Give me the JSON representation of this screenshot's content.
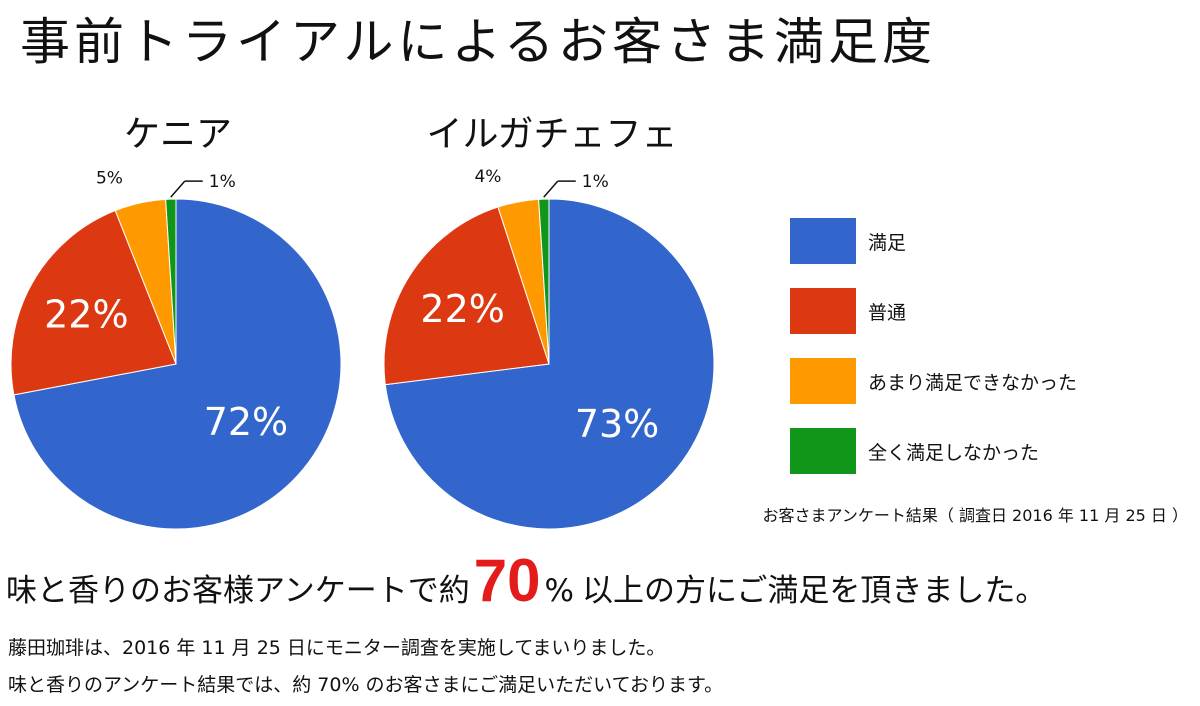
{
  "page": {
    "title": "事前トライアルによるお客さま満足度",
    "source_note": "お客さまアンケート結果（ 調査日 2016 年 11 月 25 日 ）",
    "headline": {
      "prefix": "味と香りのお客様アンケートで約",
      "highlight": "70",
      "percent_sign": "%",
      "suffix": "以上の方にご満足を頂きました。"
    },
    "body": [
      "藤田珈琲は、2016 年 11 月 25 日にモニター調査を実施してまいりました。",
      "味と香りのアンケート結果では、約 70% のお客さまにご満足いただいております。"
    ]
  },
  "legend": [
    {
      "label": "満足",
      "color": "#3366cc"
    },
    {
      "label": "普通",
      "color": "#dc3912"
    },
    {
      "label": "あまり満足できなかった",
      "color": "#ff9900"
    },
    {
      "label": "全く満足しなかった",
      "color": "#109618"
    }
  ],
  "chart_data": [
    {
      "type": "pie",
      "title": "ケニア",
      "categories": [
        "満足",
        "普通",
        "あまり満足できなかった",
        "全く満足しなかった"
      ],
      "values": [
        72,
        22,
        5,
        1
      ],
      "labels": [
        "72%",
        "22%",
        "5%",
        "1%"
      ],
      "colors": [
        "#3366cc",
        "#dc3912",
        "#ff9900",
        "#109618"
      ]
    },
    {
      "type": "pie",
      "title": "イルガチェフェ",
      "categories": [
        "満足",
        "普通",
        "あまり満足できなかった",
        "全く満足しなかった"
      ],
      "values": [
        73,
        22,
        4,
        1
      ],
      "labels": [
        "73%",
        "22%",
        "4%",
        "1%"
      ],
      "colors": [
        "#3366cc",
        "#dc3912",
        "#ff9900",
        "#109618"
      ]
    }
  ]
}
